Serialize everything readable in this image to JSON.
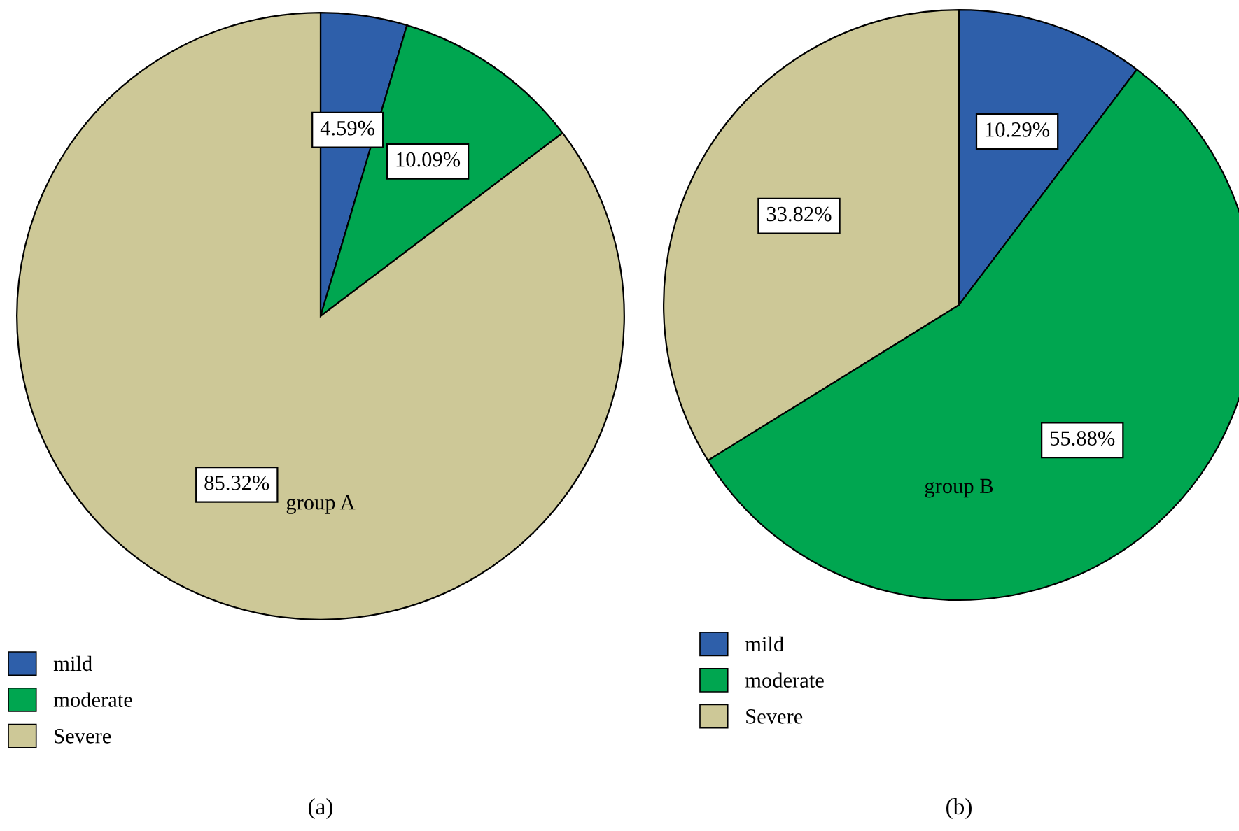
{
  "chart_data": [
    {
      "type": "pie",
      "title": "group A",
      "categories": [
        "mild",
        "moderate",
        "Severe"
      ],
      "values": [
        4.59,
        10.09,
        85.32
      ],
      "colors": [
        "#2e5faa",
        "#00a650",
        "#cdc897"
      ],
      "value_labels": [
        "4.59%",
        "10.09%",
        "85.32%"
      ],
      "legend": "bottom left",
      "annotations": [
        "(a)"
      ]
    },
    {
      "type": "pie",
      "title": "group B",
      "categories": [
        "mild",
        "moderate",
        "Severe"
      ],
      "values": [
        10.29,
        55.88,
        33.82
      ],
      "colors": [
        "#2e5faa",
        "#00a650",
        "#cdc897"
      ],
      "value_labels": [
        "10.29%",
        "55.88%",
        "33.82%"
      ],
      "legend": "bottom left",
      "annotations": [
        "(b)"
      ]
    }
  ]
}
